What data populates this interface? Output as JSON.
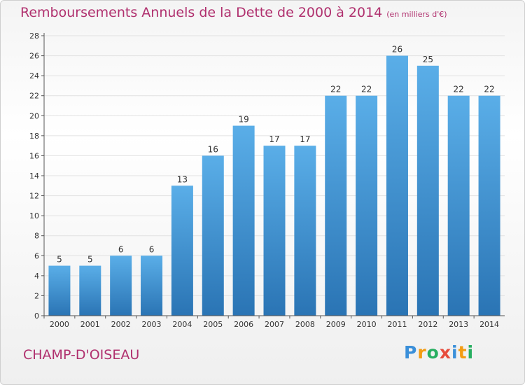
{
  "title": "Remboursements Annuels de la Dette de 2000 à 2014",
  "subtitle": "(en milliers d'€)",
  "place": "CHAMP-D'OISEAU",
  "logo": {
    "letters": [
      "P",
      "r",
      "o",
      "x",
      "i",
      "t",
      "i"
    ],
    "colors": [
      "#3a8fd9",
      "#f39c12",
      "#27ae60",
      "#e74c3c",
      "#3a8fd9",
      "#f39c12",
      "#27ae60"
    ]
  },
  "colors": {
    "bar_top": "#5aaee8",
    "bar_bottom": "#2a74b4",
    "title": "#b0306e"
  },
  "chart_data": {
    "type": "bar",
    "title": "Remboursements Annuels de la Dette de 2000 à 2014",
    "subtitle": "(en milliers d'€)",
    "categories": [
      "2000",
      "2001",
      "2002",
      "2003",
      "2004",
      "2005",
      "2006",
      "2007",
      "2008",
      "2009",
      "2010",
      "2011",
      "2012",
      "2013",
      "2014"
    ],
    "values": [
      5,
      5,
      6,
      6,
      13,
      16,
      19,
      17,
      17,
      22,
      22,
      26,
      25,
      22,
      22
    ],
    "ylim": [
      0,
      28
    ],
    "yticks": [
      0,
      2,
      4,
      6,
      8,
      10,
      12,
      14,
      16,
      18,
      20,
      22,
      24,
      26,
      28
    ],
    "grid": true,
    "legend": "none"
  }
}
